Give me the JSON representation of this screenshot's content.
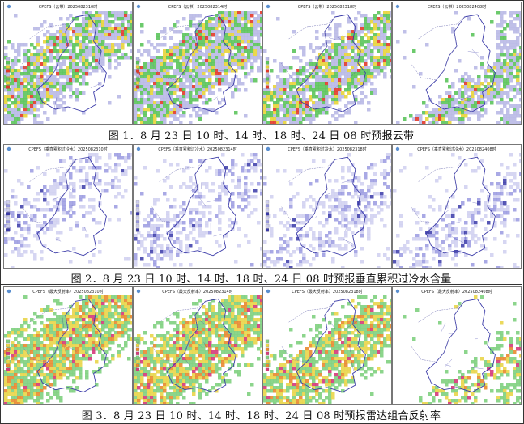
{
  "figures": [
    {
      "id": "fig1",
      "caption": "图 1．8 月 23 日 10 时、14 时、18 时、24 日 08 时预报云带",
      "product": "cloud",
      "panels": [
        {
          "title": "CPEFS（云带）2025082310时",
          "time": "10时"
        },
        {
          "title": "CPEFS（云带）2025082314时",
          "time": "14时"
        },
        {
          "title": "CPEFS（云带）2025082318时",
          "time": "18时"
        },
        {
          "title": "CPEFS（云带）2025082408时",
          "time": "08时"
        }
      ]
    },
    {
      "id": "fig2",
      "caption": "图 2．8 月 23 日 10 时、14 时、18 时、24 日 08 时预报垂直累积过冷水含量",
      "product": "supercooled-water",
      "panels": [
        {
          "title": "CPEFS（垂直累积过冷水）2025082310时",
          "time": "10时"
        },
        {
          "title": "CPEFS（垂直累积过冷水）2025082314时",
          "time": "14时"
        },
        {
          "title": "CPEFS（垂直累积过冷水）2025082318时",
          "time": "18时"
        },
        {
          "title": "CPEFS（垂直累积过冷水）2025082408时",
          "time": "08时"
        }
      ]
    },
    {
      "id": "fig3",
      "caption": "图 3．8 月 23 日 10 时、14 时、18 时、24 日 08 时预报雷达组合反射率",
      "product": "radar-reflectivity",
      "panels": [
        {
          "title": "CPEFS（最大反射率）2025082310时",
          "time": "10时"
        },
        {
          "title": "CPEFS（最大反射率）2025082314时",
          "time": "14时"
        },
        {
          "title": "CPEFS（最大反射率）2025082318时",
          "time": "18时"
        },
        {
          "title": "CPEFS（最大反射率）2025082408时",
          "time": "08时"
        }
      ]
    }
  ],
  "colors": {
    "boundary": "#3a3aa8",
    "cloud_low": "#b9b9e6",
    "cloud_mid": "#5cc45c",
    "cloud_high": "#e8d43a",
    "cloud_peak": "#e23a2a",
    "scw_low": "#cfcff0",
    "scw_mid": "#9a9ae0",
    "radar_low": "#7fd07f",
    "radar_mid": "#e9d54a",
    "radar_high": "#e88a30",
    "radar_peak": "#d43a7a"
  }
}
